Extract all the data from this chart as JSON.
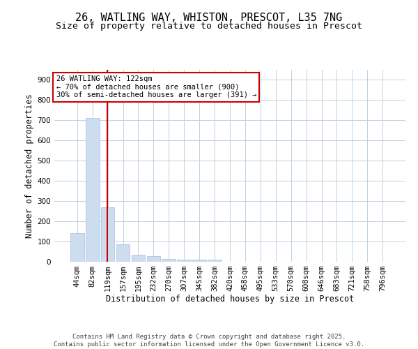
{
  "title_line1": "26, WATLING WAY, WHISTON, PRESCOT, L35 7NG",
  "title_line2": "Size of property relative to detached houses in Prescot",
  "xlabel": "Distribution of detached houses by size in Prescot",
  "ylabel": "Number of detached properties",
  "categories": [
    "44sqm",
    "82sqm",
    "119sqm",
    "157sqm",
    "195sqm",
    "232sqm",
    "270sqm",
    "307sqm",
    "345sqm",
    "382sqm",
    "420sqm",
    "458sqm",
    "495sqm",
    "533sqm",
    "570sqm",
    "608sqm",
    "646sqm",
    "683sqm",
    "721sqm",
    "758sqm",
    "796sqm"
  ],
  "values": [
    140,
    710,
    270,
    85,
    35,
    28,
    15,
    10,
    10,
    10,
    0,
    0,
    0,
    0,
    0,
    0,
    0,
    0,
    0,
    0,
    0
  ],
  "bar_color": "#ccddf0",
  "bar_edge_color": "#aabbd8",
  "vline_color": "#cc0000",
  "annotation_text": "26 WATLING WAY: 122sqm\n← 70% of detached houses are smaller (900)\n30% of semi-detached houses are larger (391) →",
  "annotation_box_color": "#cc0000",
  "annotation_text_color": "#000000",
  "ylim": [
    0,
    950
  ],
  "yticks": [
    0,
    100,
    200,
    300,
    400,
    500,
    600,
    700,
    800,
    900
  ],
  "background_color": "#ffffff",
  "grid_color": "#c0d0e0",
  "footer_text": "Contains HM Land Registry data © Crown copyright and database right 2025.\nContains public sector information licensed under the Open Government Licence v3.0.",
  "title_fontsize": 11,
  "subtitle_fontsize": 9.5,
  "axis_label_fontsize": 8.5,
  "tick_fontsize": 7.5,
  "annotation_fontsize": 7.5,
  "footer_fontsize": 6.5
}
